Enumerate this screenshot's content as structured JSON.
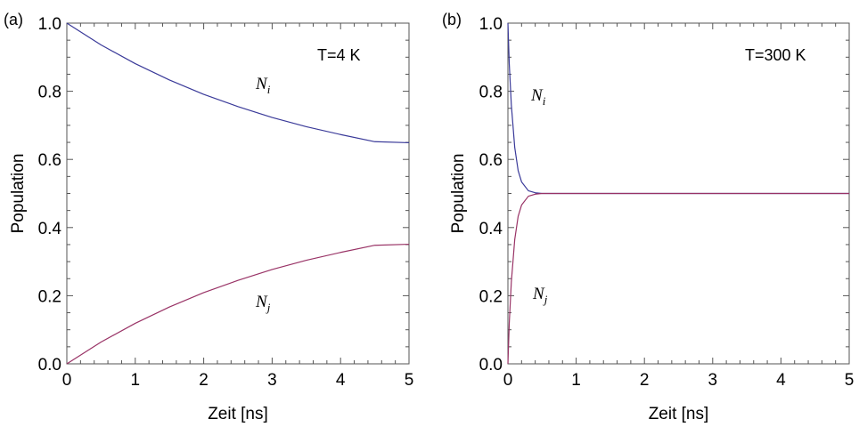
{
  "chart_data": [
    {
      "panel": "(a)",
      "type": "line",
      "annotation": "T=4 K",
      "xlabel": "Zeit [ns]",
      "ylabel": "Population",
      "xlim": [
        0,
        5
      ],
      "ylim": [
        0,
        1
      ],
      "xticks": [
        "0",
        "1",
        "2",
        "3",
        "4",
        "5"
      ],
      "yticks": [
        "0.0",
        "0.2",
        "0.4",
        "0.6",
        "0.8",
        "1.0"
      ],
      "series": [
        {
          "label": "N",
          "subscript": "i",
          "color": "#3a3a99",
          "x": [
            0,
            0.5,
            1,
            1.5,
            2,
            2.5,
            3,
            3.5,
            4,
            4.5,
            5
          ],
          "y": [
            1.0,
            0.936,
            0.881,
            0.833,
            0.791,
            0.755,
            0.723,
            0.696,
            0.673,
            0.652,
            0.649
          ]
        },
        {
          "label": "N",
          "subscript": "j",
          "color": "#993366",
          "x": [
            0,
            0.5,
            1,
            1.5,
            2,
            2.5,
            3,
            3.5,
            4,
            4.5,
            5
          ],
          "y": [
            0.0,
            0.064,
            0.119,
            0.167,
            0.209,
            0.245,
            0.277,
            0.304,
            0.327,
            0.348,
            0.351
          ]
        }
      ]
    },
    {
      "panel": "(b)",
      "type": "line",
      "annotation": "T=300 K",
      "xlabel": "Zeit [ns]",
      "ylabel": "Population",
      "xlim": [
        0,
        5
      ],
      "ylim": [
        0,
        1
      ],
      "xticks": [
        "0",
        "1",
        "2",
        "3",
        "4",
        "5"
      ],
      "yticks": [
        "0.0",
        "0.2",
        "0.4",
        "0.6",
        "0.8",
        "1.0"
      ],
      "series": [
        {
          "label": "N",
          "subscript": "i",
          "color": "#3a3a99",
          "x": [
            0,
            0.02,
            0.05,
            0.1,
            0.15,
            0.2,
            0.3,
            0.4,
            0.5,
            1,
            2,
            3,
            4,
            5
          ],
          "y": [
            1.0,
            0.88,
            0.76,
            0.635,
            0.567,
            0.534,
            0.508,
            0.502,
            0.5,
            0.5,
            0.5,
            0.5,
            0.5,
            0.5
          ]
        },
        {
          "label": "N",
          "subscript": "j",
          "color": "#993366",
          "x": [
            0,
            0.02,
            0.05,
            0.1,
            0.15,
            0.2,
            0.3,
            0.4,
            0.5,
            1,
            2,
            3,
            4,
            5
          ],
          "y": [
            0.0,
            0.12,
            0.24,
            0.365,
            0.433,
            0.466,
            0.492,
            0.498,
            0.5,
            0.5,
            0.5,
            0.5,
            0.5,
            0.5
          ]
        }
      ]
    }
  ]
}
